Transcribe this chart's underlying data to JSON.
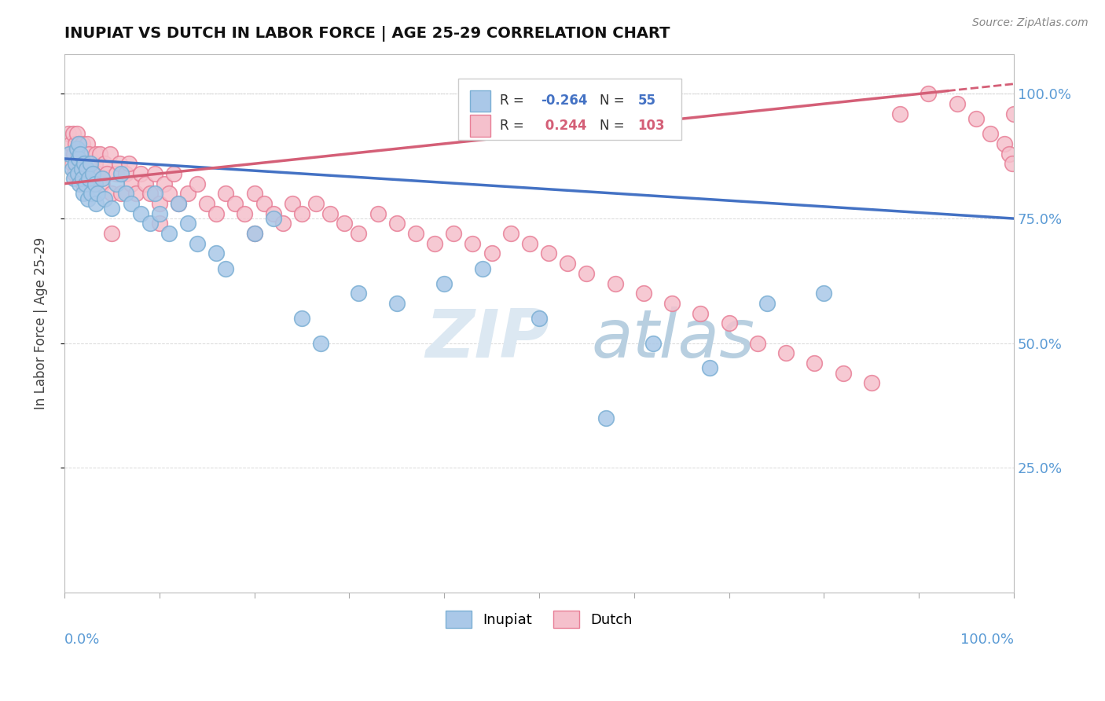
{
  "title": "INUPIAT VS DUTCH IN LABOR FORCE | AGE 25-29 CORRELATION CHART",
  "source_text": "Source: ZipAtlas.com",
  "ylabel": "In Labor Force | Age 25-29",
  "xlim": [
    0.0,
    1.0
  ],
  "ylim": [
    0.0,
    1.08
  ],
  "inupiat_color": "#aac8e8",
  "inupiat_edge_color": "#7bafd4",
  "dutch_color": "#f5c0cc",
  "dutch_edge_color": "#e87f97",
  "inupiat_line_color": "#4472c4",
  "dutch_line_color": "#d45f77",
  "inupiat_R": -0.264,
  "inupiat_N": 55,
  "dutch_R": 0.244,
  "dutch_N": 103,
  "watermark_zip": "ZIP",
  "watermark_atlas": "atlas",
  "background_color": "#ffffff",
  "axis_label_color": "#5b9bd5",
  "right_ytick_values": [
    0.25,
    0.5,
    0.75,
    1.0
  ],
  "grid_color": "#d8d8d8",
  "legend_box_color": "#cccccc",
  "inupiat_x": [
    0.005,
    0.008,
    0.01,
    0.012,
    0.013,
    0.014,
    0.015,
    0.015,
    0.016,
    0.017,
    0.018,
    0.019,
    0.02,
    0.021,
    0.022,
    0.023,
    0.025,
    0.026,
    0.027,
    0.028,
    0.03,
    0.032,
    0.033,
    0.035,
    0.04,
    0.042,
    0.05,
    0.055,
    0.06,
    0.065,
    0.07,
    0.08,
    0.09,
    0.095,
    0.1,
    0.11,
    0.12,
    0.13,
    0.14,
    0.16,
    0.17,
    0.2,
    0.22,
    0.25,
    0.27,
    0.31,
    0.35,
    0.4,
    0.44,
    0.5,
    0.57,
    0.62,
    0.68,
    0.74,
    0.8
  ],
  "inupiat_y": [
    0.88,
    0.85,
    0.83,
    0.86,
    0.89,
    0.84,
    0.87,
    0.9,
    0.82,
    0.88,
    0.85,
    0.83,
    0.8,
    0.86,
    0.82,
    0.85,
    0.79,
    0.83,
    0.86,
    0.8,
    0.84,
    0.82,
    0.78,
    0.8,
    0.83,
    0.79,
    0.77,
    0.82,
    0.84,
    0.8,
    0.78,
    0.76,
    0.74,
    0.8,
    0.76,
    0.72,
    0.78,
    0.74,
    0.7,
    0.68,
    0.65,
    0.72,
    0.75,
    0.55,
    0.5,
    0.6,
    0.58,
    0.62,
    0.65,
    0.55,
    0.35,
    0.5,
    0.45,
    0.58,
    0.6
  ],
  "dutch_x": [
    0.004,
    0.006,
    0.007,
    0.008,
    0.009,
    0.01,
    0.011,
    0.012,
    0.013,
    0.013,
    0.014,
    0.015,
    0.015,
    0.016,
    0.017,
    0.018,
    0.019,
    0.02,
    0.021,
    0.022,
    0.023,
    0.024,
    0.025,
    0.026,
    0.027,
    0.028,
    0.03,
    0.032,
    0.033,
    0.035,
    0.037,
    0.04,
    0.042,
    0.045,
    0.048,
    0.05,
    0.055,
    0.058,
    0.06,
    0.065,
    0.068,
    0.07,
    0.075,
    0.08,
    0.085,
    0.09,
    0.095,
    0.1,
    0.105,
    0.11,
    0.115,
    0.12,
    0.13,
    0.14,
    0.15,
    0.16,
    0.17,
    0.18,
    0.19,
    0.2,
    0.21,
    0.22,
    0.23,
    0.24,
    0.25,
    0.265,
    0.28,
    0.295,
    0.31,
    0.33,
    0.35,
    0.37,
    0.39,
    0.41,
    0.43,
    0.45,
    0.47,
    0.49,
    0.51,
    0.53,
    0.55,
    0.58,
    0.61,
    0.64,
    0.67,
    0.7,
    0.73,
    0.76,
    0.79,
    0.82,
    0.85,
    0.88,
    0.91,
    0.94,
    0.96,
    0.975,
    0.99,
    0.995,
    0.998,
    1.0,
    0.05,
    0.1,
    0.2
  ],
  "dutch_y": [
    0.92,
    0.88,
    0.9,
    0.86,
    0.92,
    0.88,
    0.84,
    0.9,
    0.86,
    0.92,
    0.88,
    0.84,
    0.9,
    0.86,
    0.88,
    0.84,
    0.9,
    0.82,
    0.86,
    0.88,
    0.84,
    0.9,
    0.86,
    0.88,
    0.84,
    0.86,
    0.82,
    0.86,
    0.88,
    0.84,
    0.88,
    0.82,
    0.86,
    0.84,
    0.88,
    0.8,
    0.84,
    0.86,
    0.8,
    0.84,
    0.86,
    0.82,
    0.8,
    0.84,
    0.82,
    0.8,
    0.84,
    0.78,
    0.82,
    0.8,
    0.84,
    0.78,
    0.8,
    0.82,
    0.78,
    0.76,
    0.8,
    0.78,
    0.76,
    0.8,
    0.78,
    0.76,
    0.74,
    0.78,
    0.76,
    0.78,
    0.76,
    0.74,
    0.72,
    0.76,
    0.74,
    0.72,
    0.7,
    0.72,
    0.7,
    0.68,
    0.72,
    0.7,
    0.68,
    0.66,
    0.64,
    0.62,
    0.6,
    0.58,
    0.56,
    0.54,
    0.5,
    0.48,
    0.46,
    0.44,
    0.42,
    0.96,
    1.0,
    0.98,
    0.95,
    0.92,
    0.9,
    0.88,
    0.86,
    0.96,
    0.72,
    0.74,
    0.72
  ]
}
